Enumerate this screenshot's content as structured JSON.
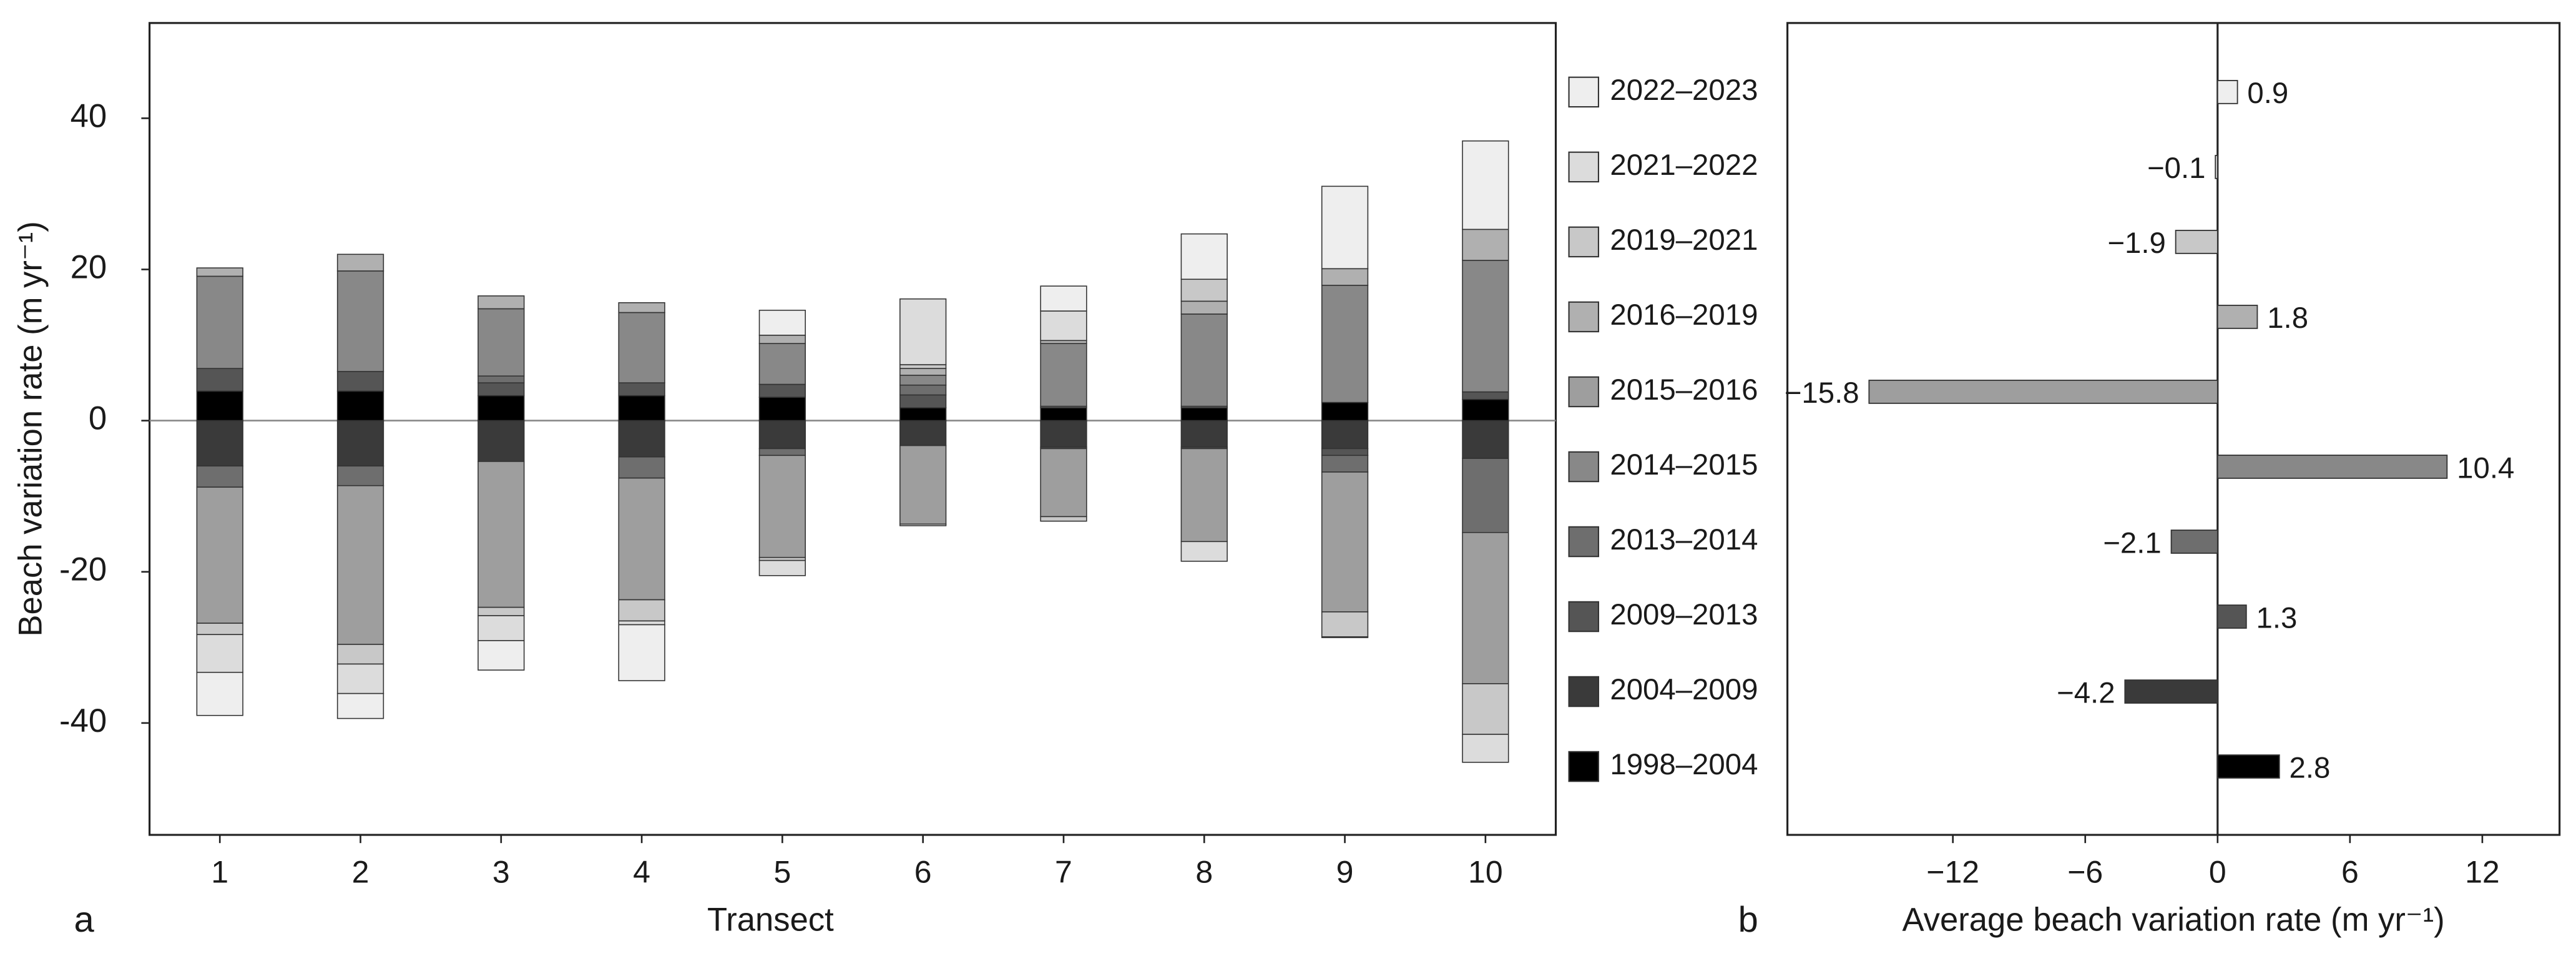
{
  "chart_data": [
    {
      "type": "stacked_bar",
      "panel": "a",
      "xlabel": "Transect",
      "ylabel": "Beach variation rate (m yr⁻¹)",
      "categories": [
        "1",
        "2",
        "3",
        "4",
        "5",
        "6",
        "7",
        "8",
        "9",
        "10"
      ],
      "ylim": [
        -54.8,
        52.6
      ],
      "yticks": [
        -40,
        -20,
        0,
        20,
        40
      ],
      "series": [
        {
          "name": "1998–2004",
          "color": "#000000",
          "values": [
            3.9,
            3.9,
            3.3,
            3.3,
            3.1,
            1.7,
            1.7,
            1.7,
            2.4,
            2.8
          ]
        },
        {
          "name": "2004–2009",
          "color": "#3a3a3a",
          "values": [
            -6,
            -6,
            -5.4,
            -4.8,
            -3.7,
            -3.3,
            -3.5,
            -3.5,
            -3.7,
            -5
          ]
        },
        {
          "name": "2009–2013",
          "color": "#555555",
          "values": [
            3,
            2.6,
            1.7,
            1.7,
            1.7,
            1.7,
            -0.2,
            -0.2,
            -0.9,
            1
          ]
        },
        {
          "name": "2013–2014",
          "color": "#6e6e6e",
          "values": [
            -2.8,
            -2.6,
            0.9,
            -2.8,
            -0.9,
            1.3,
            0.2,
            0.2,
            -2.2,
            -9.8
          ]
        },
        {
          "name": "2014–2015",
          "color": "#888888",
          "values": [
            12.2,
            13.3,
            8.9,
            9.3,
            5.4,
            1.3,
            8.3,
            12.2,
            15.5,
            17.4
          ]
        },
        {
          "name": "2015–2016",
          "color": "#9e9e9e",
          "values": [
            -18,
            -21,
            -19.3,
            -16.1,
            -13.5,
            -10.4,
            -9,
            -12.3,
            -18.5,
            -20
          ]
        },
        {
          "name": "2016–2019",
          "color": "#b0b0b0",
          "values": [
            1.1,
            2.2,
            1.7,
            1.3,
            1.1,
            0.9,
            0.4,
            1.7,
            2.2,
            4.1
          ]
        },
        {
          "name": "2019–2021",
          "color": "#c8c8c8",
          "values": [
            -1.5,
            -2.6,
            -1.1,
            -2.8,
            -0.4,
            0.5,
            -0.6,
            2.9,
            -3.3,
            -6.7
          ]
        },
        {
          "name": "2021–2022",
          "color": "#dcdcdc",
          "values": [
            -5,
            -3.9,
            -3.3,
            -0.5,
            -2,
            8.7,
            3.9,
            -2.6,
            -0.1,
            -3.7
          ]
        },
        {
          "name": "2022–2023",
          "color": "#eeeeee",
          "values": [
            -5.7,
            -3.3,
            -3.9,
            -7.4,
            3.3,
            -0.2,
            3.3,
            6,
            10.9,
            11.7
          ]
        }
      ]
    },
    {
      "type": "hbar",
      "panel": "b",
      "xlabel": "Average beach variation rate (m yr⁻¹)",
      "xlim": [
        -19.5,
        15.5
      ],
      "xticks": [
        {
          "value": -12,
          "label": "−12"
        },
        {
          "value": -6,
          "label": "−6"
        },
        0,
        6,
        12
      ],
      "values": [
        2.8,
        -4.2,
        1.3,
        -2.1,
        10.4,
        -15.8,
        1.8,
        -1.9,
        -0.1,
        0.9
      ],
      "value_labels": [
        "2.8",
        "−4.2",
        "1.3",
        "−2.1",
        "10.4",
        "−15.8",
        "1.8",
        "−1.9",
        "−0.1",
        "0.9"
      ],
      "colors": [
        "#000000",
        "#3a3a3a",
        "#555555",
        "#6e6e6e",
        "#888888",
        "#9e9e9e",
        "#b0b0b0",
        "#c8c8c8",
        "#dcdcdc",
        "#eeeeee"
      ]
    }
  ]
}
